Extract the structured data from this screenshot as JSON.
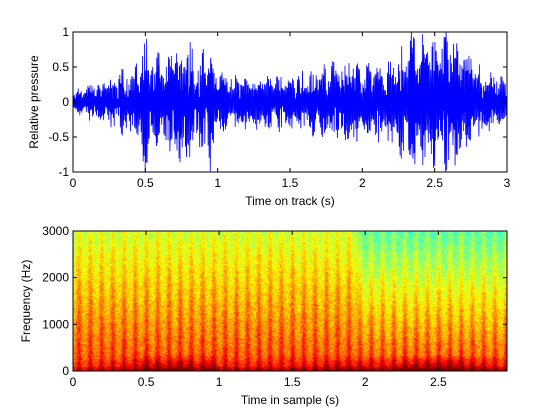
{
  "chart_data": [
    {
      "type": "line",
      "xlabel": "Time on track (s)",
      "ylabel": "Relative pressure",
      "xlim": [
        0,
        3
      ],
      "ylim": [
        -1,
        1
      ],
      "xticks": [
        0,
        0.5,
        1,
        1.5,
        2,
        2.5,
        3
      ],
      "xtick_labels": [
        "0",
        "0.5",
        "1",
        "1.5",
        "2",
        "2.5",
        "3"
      ],
      "yticks": [
        -1,
        -0.5,
        0,
        0.5,
        1
      ],
      "ytick_labels": [
        "-1",
        "-0.5",
        "0",
        "0.5",
        "1"
      ],
      "grid": false,
      "line_color": "#0000ff",
      "envelope": {
        "x": [
          0,
          0.1,
          0.2,
          0.3,
          0.4,
          0.45,
          0.5,
          0.55,
          0.6,
          0.65,
          0.7,
          0.75,
          0.8,
          0.85,
          0.9,
          0.95,
          1.0,
          1.1,
          1.2,
          1.3,
          1.4,
          1.5,
          1.6,
          1.7,
          1.8,
          1.9,
          2.0,
          2.1,
          2.2,
          2.3,
          2.35,
          2.4,
          2.45,
          2.5,
          2.55,
          2.6,
          2.65,
          2.7,
          2.8,
          2.9,
          3.0
        ],
        "amplitude": [
          0.15,
          0.25,
          0.3,
          0.4,
          0.55,
          0.6,
          1.0,
          0.7,
          0.85,
          0.6,
          1.0,
          0.8,
          1.0,
          0.55,
          0.8,
          1.0,
          0.45,
          0.4,
          0.35,
          0.4,
          0.4,
          0.4,
          0.45,
          0.5,
          0.6,
          0.65,
          0.55,
          0.55,
          0.6,
          0.85,
          1.0,
          0.9,
          1.0,
          1.0,
          1.0,
          1.0,
          1.0,
          0.8,
          0.55,
          0.5,
          0.35
        ]
      }
    },
    {
      "type": "heatmap",
      "xlabel": "Time in sample (s)",
      "ylabel": "Frequency (Hz)",
      "xlim": [
        0,
        2.97
      ],
      "ylim": [
        0,
        3000
      ],
      "xticks": [
        0,
        0.5,
        1,
        1.5,
        2,
        2.5
      ],
      "xtick_labels": [
        "0",
        "0.5",
        "1",
        "1.5",
        "2",
        "2.5"
      ],
      "yticks": [
        0,
        1000,
        2000,
        3000
      ],
      "ytick_labels": [
        "0",
        "1000",
        "2000",
        "3000"
      ],
      "colormap": "jet",
      "grid": false
    }
  ]
}
